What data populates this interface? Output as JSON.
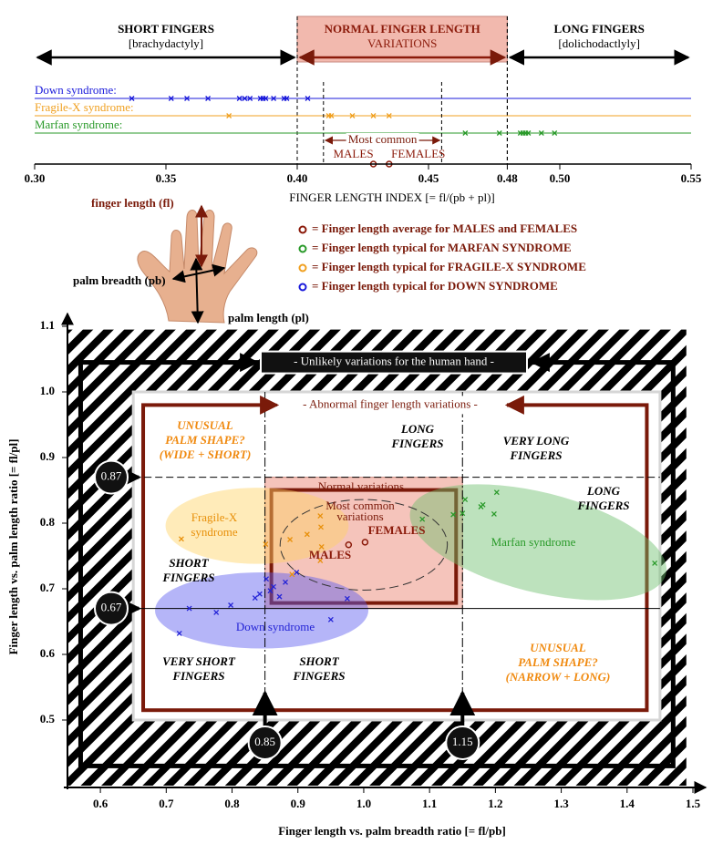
{
  "chart_data": [
    {
      "type": "strip",
      "regions": [
        {
          "lines": [
            "SHORT FINGERS",
            "[brachydactyly]"
          ],
          "from": 0.3,
          "to": 0.4,
          "color": "#000000"
        },
        {
          "lines": [
            "NORMAL FINGER LENGTH",
            "VARIATIONS"
          ],
          "from": 0.4,
          "to": 0.48,
          "color": "#8b1a0a",
          "fill": "#f2b9ae"
        },
        {
          "lines": [
            "LONG FINGERS",
            "[dolichodactlyly]"
          ],
          "from": 0.48,
          "to": 0.55,
          "color": "#000000"
        }
      ],
      "series": [
        {
          "name": "Down syndrome:",
          "color": "#1a1adb",
          "values": [
            0.337,
            0.352,
            0.358,
            0.366,
            0.378,
            0.38,
            0.382,
            0.386,
            0.387,
            0.388,
            0.391,
            0.395,
            0.396,
            0.404
          ]
        },
        {
          "name": "Fragile-X syndrome:",
          "color": "#f0a020",
          "values": [
            0.374,
            0.412,
            0.413,
            0.421,
            0.429,
            0.435
          ]
        },
        {
          "name": "Marfan syndrome:",
          "color": "#2a9a2a",
          "values": [
            0.464,
            0.477,
            0.485,
            0.486,
            0.487,
            0.488,
            0.493,
            0.498
          ]
        }
      ],
      "most_common": {
        "label": "Most common",
        "range": [
          0.41,
          0.455
        ]
      },
      "averages": [
        {
          "name": "MALES",
          "value": 0.429
        },
        {
          "name": "FEMALES",
          "value": 0.435
        }
      ],
      "average_color": "#8b1a0a",
      "xlim": [
        0.3,
        0.55
      ],
      "xticks": [
        {
          "value": 0.3,
          "label": "0.30"
        },
        0.35,
        {
          "value": 0.4,
          "label": "0.40"
        },
        0.45,
        0.48,
        {
          "value": 0.5,
          "label": "0.50"
        },
        0.55
      ],
      "xlabel": "FINGER LENGTH INDEX [= fl/(pb + pl)]"
    },
    {
      "type": "scatter",
      "xlim": [
        0.55,
        1.5
      ],
      "ylim": [
        0.4,
        1.1
      ],
      "xticks": [
        0.6,
        0.7,
        0.8,
        0.9,
        {
          "value": 1,
          "label": "1.0"
        },
        1.1,
        1.2,
        1.3,
        1.4,
        1.5
      ],
      "yticks": [
        0.5,
        0.6,
        0.7,
        0.8,
        0.9,
        {
          "value": 1,
          "label": "1.0"
        },
        1.1
      ],
      "xlabel": "Finger length vs. palm breadth ratio [= fl/pb]",
      "ylabel": "Finger length vs. palm length ratio [= fl/pl]",
      "hatch_region": {
        "x": [
          0.55,
          1.49
        ],
        "y": [
          0.4,
          1.095
        ]
      },
      "unlikely_line": {
        "label": "- Unlikely variations for the human hand -",
        "x": [
          0.57,
          1.47
        ],
        "y": [
          0.43,
          1.045
        ]
      },
      "likely_region": {
        "x": [
          0.65,
          1.45
        ],
        "y": [
          0.5,
          1.0
        ]
      },
      "abnormal_region": {
        "label": "- Abnormal finger length variations -",
        "color": "#7a1a0a",
        "x": [
          0.665,
          1.43
        ],
        "y": [
          0.515,
          0.98
        ]
      },
      "normal_box": {
        "label": "Normal variations",
        "fill": "#eb8a78",
        "x": [
          0.85,
          1.15
        ],
        "y": [
          0.67,
          0.87
        ]
      },
      "most_common": {
        "lines": [
          "Most common",
          "variations"
        ],
        "cx": 1.0,
        "cy": 0.767,
        "rx": 0.127,
        "ry": 0.069
      },
      "reference_lines": [
        {
          "axis": "y",
          "value": 0.87
        },
        {
          "axis": "y",
          "value": 0.67
        },
        {
          "axis": "x",
          "value": 0.85
        },
        {
          "axis": "x",
          "value": 1.15
        }
      ],
      "series": [
        {
          "label_lines": [
            "Down syndrome"
          ],
          "color": "#2323d6",
          "fill": "#5a5af0",
          "ellipse": {
            "cx": 0.845,
            "cy": 0.667,
            "rx": 0.162,
            "ry": 0.058,
            "angle": 0
          },
          "x": [
            0.72,
            0.735,
            0.776,
            0.798,
            0.835,
            0.842,
            0.852,
            0.858,
            0.863,
            0.872,
            0.881,
            0.898,
            0.95,
            0.975
          ],
          "y": [
            0.632,
            0.67,
            0.664,
            0.675,
            0.686,
            0.692,
            0.715,
            0.697,
            0.703,
            0.688,
            0.71,
            0.725,
            0.653,
            0.685
          ]
        },
        {
          "label_lines": [
            "Fragile-X",
            "syndrome"
          ],
          "color": "#e8900a",
          "fill": "#ffd264",
          "ellipse": {
            "cx": 0.838,
            "cy": 0.796,
            "rx": 0.139,
            "ry": 0.058,
            "angle": 0
          },
          "x": [
            0.723,
            0.851,
            0.888,
            0.891,
            0.914,
            0.934,
            0.935,
            0.934,
            0.936
          ],
          "y": [
            0.776,
            0.768,
            0.775,
            0.722,
            0.783,
            0.811,
            0.794,
            0.743,
            0.764
          ]
        },
        {
          "label_lines": [
            "Marfan syndrome"
          ],
          "color": "#2a9a2a",
          "fill": "#6cbf6c",
          "ellipse": {
            "cx": 1.265,
            "cy": 0.771,
            "rx": 0.2,
            "ry": 0.076,
            "angle": 14
          },
          "x": [
            1.089,
            1.136,
            1.154,
            1.15,
            1.178,
            1.181,
            1.202,
            1.198,
            1.442
          ],
          "y": [
            0.806,
            0.813,
            0.836,
            0.815,
            0.825,
            0.828,
            0.847,
            0.814,
            0.739
          ]
        }
      ],
      "averages": [
        {
          "name": "MALES",
          "x": 0.977,
          "y": 0.767
        },
        {
          "name": "FEMALES",
          "x": 1.002,
          "y": 0.771
        }
      ],
      "average_color": "#8b1a0a",
      "zones": [
        {
          "lines": [
            "UNUSUAL",
            "PALM SHAPE?",
            "(WIDE + SHORT)"
          ],
          "color": "#f08a10"
        },
        {
          "lines": [
            "LONG",
            "FINGERS"
          ],
          "color": "#000000"
        },
        {
          "lines": [
            "VERY LONG",
            "FINGERS"
          ],
          "color": "#000000"
        },
        {
          "lines": [
            "LONG",
            "FINGERS"
          ],
          "color": "#000000"
        },
        {
          "lines": [
            "SHORT",
            "FINGERS"
          ],
          "color": "#000000"
        },
        {
          "lines": [
            "VERY SHORT",
            "FINGERS"
          ],
          "color": "#000000"
        },
        {
          "lines": [
            "SHORT",
            "FINGERS"
          ],
          "color": "#000000"
        },
        {
          "lines": [
            "UNUSUAL",
            "PALM SHAPE?",
            "(NARROW + LONG)"
          ],
          "color": "#f08a10"
        }
      ]
    }
  ],
  "hand_key": {
    "fl": "finger length (fl)",
    "pb": "palm breadth (pb)",
    "pl": "palm length (pl)",
    "text_color": "#7a1a0a",
    "legend": [
      {
        "color": "#8b1a0a",
        "text": "= Finger length average for MALES and FEMALES"
      },
      {
        "color": "#2a9a2a",
        "text": "= Finger length typical for MARFAN SYNDROME"
      },
      {
        "color": "#f0a020",
        "text": "= Finger length typical for FRAGILE-X SYNDROME"
      },
      {
        "color": "#1a1adb",
        "text": "= Finger length typical for DOWN SYNDROME"
      }
    ]
  }
}
